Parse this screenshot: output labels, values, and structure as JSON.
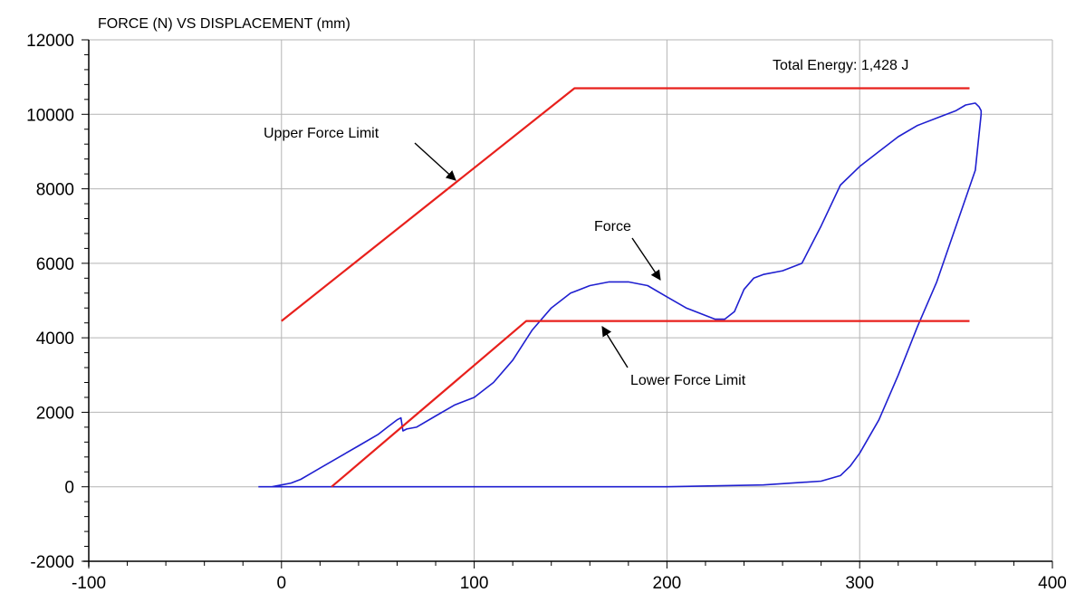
{
  "chart_data": {
    "type": "line",
    "title": "FORCE (N) VS DISPLACEMENT (mm)",
    "xlabel": "",
    "ylabel": "",
    "xlim": [
      -100,
      400
    ],
    "ylim": [
      -2000,
      12000
    ],
    "x_ticks": [
      -100,
      0,
      100,
      200,
      300,
      400
    ],
    "y_ticks": [
      -2000,
      0,
      2000,
      4000,
      6000,
      8000,
      10000,
      12000
    ],
    "grid": true,
    "colors": {
      "force": "#1f1fd0",
      "limits": "#e8201c",
      "grid": "#b4b4b4",
      "axis": "#000000"
    },
    "series": [
      {
        "name": "Force",
        "x": [
          -12,
          -5,
          0,
          5,
          10,
          15,
          20,
          30,
          40,
          50,
          55,
          60,
          62,
          63,
          65,
          70,
          80,
          90,
          100,
          110,
          120,
          130,
          140,
          150,
          160,
          170,
          180,
          190,
          200,
          210,
          220,
          225,
          230,
          235,
          240,
          245,
          250,
          260,
          270,
          280,
          290,
          300,
          310,
          320,
          330,
          340,
          350,
          355,
          360,
          362,
          363,
          363,
          360,
          350,
          340,
          330,
          320,
          310,
          300,
          295,
          290,
          280,
          250,
          200,
          150,
          100,
          50,
          0,
          -12
        ],
        "y": [
          0,
          0,
          50,
          100,
          200,
          350,
          500,
          800,
          1100,
          1400,
          1600,
          1800,
          1850,
          1500,
          1550,
          1600,
          1900,
          2200,
          2400,
          2800,
          3400,
          4200,
          4800,
          5200,
          5400,
          5500,
          5500,
          5400,
          5100,
          4800,
          4600,
          4500,
          4500,
          4700,
          5300,
          5600,
          5700,
          5800,
          6000,
          7000,
          8100,
          8600,
          9000,
          9400,
          9700,
          9900,
          10100,
          10250,
          10300,
          10200,
          10100,
          10000,
          8500,
          7000,
          5500,
          4300,
          3000,
          1800,
          900,
          550,
          300,
          150,
          50,
          0,
          0,
          0,
          0,
          0,
          0
        ]
      },
      {
        "name": "Upper Force Limit",
        "x": [
          0,
          152,
          357
        ],
        "y": [
          4450,
          10700,
          10700
        ]
      },
      {
        "name": "Lower Force Limit",
        "x": [
          26,
          127,
          357
        ],
        "y": [
          0,
          4450,
          4450
        ]
      }
    ],
    "annotations": [
      {
        "text": "Total Energy: 1,428 J"
      },
      {
        "text": "Upper Force Limit"
      },
      {
        "text": "Force"
      },
      {
        "text": "Lower Force Limit"
      }
    ]
  }
}
